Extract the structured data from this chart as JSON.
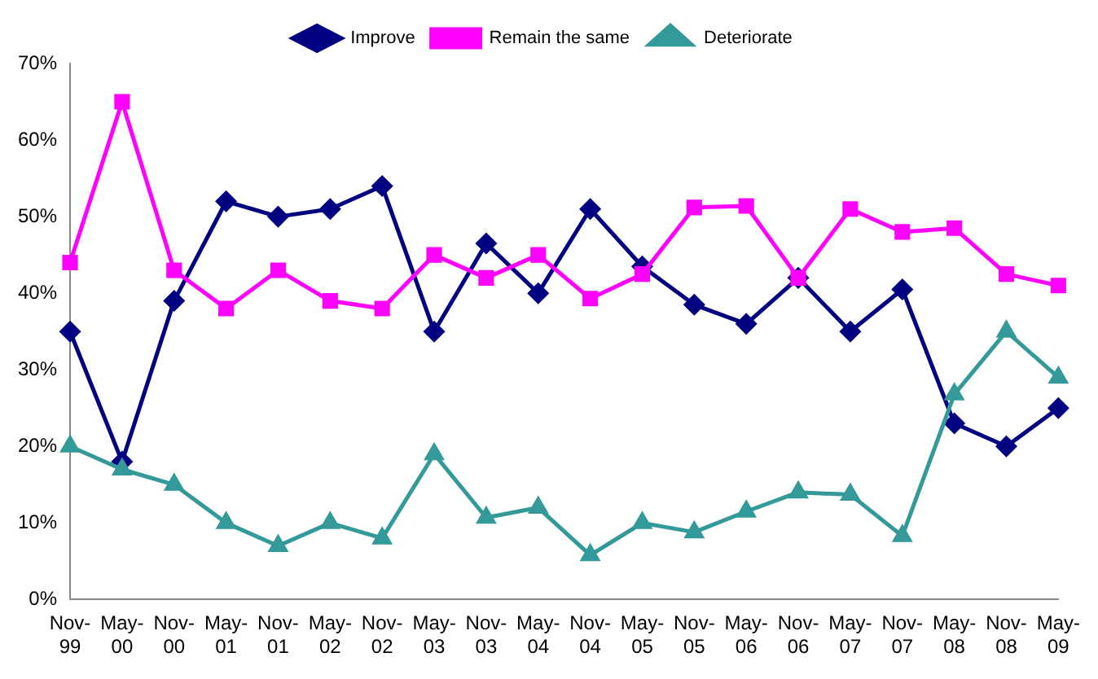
{
  "chart_data": {
    "type": "line",
    "categories": [
      "Nov-99",
      "May-00",
      "Nov-00",
      "May-01",
      "Nov-01",
      "May-02",
      "Nov-02",
      "May-03",
      "Nov-03",
      "May-04",
      "Nov-04",
      "May-05",
      "Nov-05",
      "May-06",
      "Nov-06",
      "May-07",
      "Nov-07",
      "May-08",
      "Nov-08",
      "May-09"
    ],
    "series": [
      {
        "name": "Improve",
        "color": "#000080",
        "marker": "diamond",
        "values": [
          35,
          18,
          39,
          52,
          50,
          51,
          54,
          35,
          46.5,
          40,
          51,
          43.5,
          38.5,
          36,
          42,
          35,
          40.5,
          23,
          20,
          25
        ]
      },
      {
        "name": "Remain the same",
        "color": "#ff00ff",
        "marker": "square",
        "values": [
          44,
          65,
          43,
          38,
          43,
          39,
          38,
          45,
          42,
          45,
          39.3,
          42.5,
          51.2,
          51.4,
          42,
          51,
          48,
          48.5,
          42.5,
          41
        ]
      },
      {
        "name": "Deteriorate",
        "color": "#339999",
        "marker": "triangle",
        "values": [
          20,
          17,
          15,
          10,
          7,
          10,
          8,
          19,
          10.7,
          12,
          5.8,
          10,
          8.8,
          11.5,
          14,
          13.7,
          8.3,
          26.8,
          35,
          29
        ]
      }
    ],
    "ylim": [
      0,
      70
    ],
    "yticks": [
      {
        "value": 0,
        "label": "0%"
      },
      {
        "value": 10,
        "label": "10%"
      },
      {
        "value": 20,
        "label": "20%"
      },
      {
        "value": 30,
        "label": "30%"
      },
      {
        "value": 40,
        "label": "40%"
      },
      {
        "value": 50,
        "label": "50%"
      },
      {
        "value": 60,
        "label": "60%"
      },
      {
        "value": 70,
        "label": "70%"
      }
    ],
    "grid": false,
    "legend": "top"
  }
}
